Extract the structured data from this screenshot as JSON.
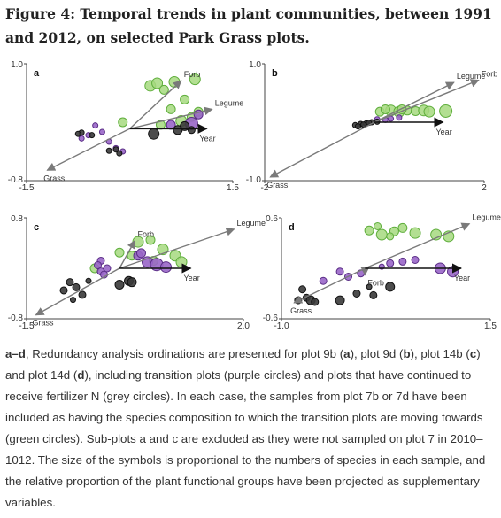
{
  "figure": {
    "title": "Figure 4: Temporal trends in plant communities, between 1991 and 2012, on selected Park Grass plots."
  },
  "caption": {
    "label": "a–d",
    "p1": ", Redundancy analysis ordinations are presented for plot 9b (",
    "a": "a",
    "p2": "), plot 9d (",
    "b": "b",
    "p3": "), plot 14b (",
    "c": "c",
    "p4": ") and plot 14d (",
    "d": "d",
    "p5": "), including transition plots (purple circles) and plots that have continued to receive fertilizer N (grey circles). In each case, the samples from plot 7b or 7d have been included as having the species composition to which the transition plots are moving towards (green circles). Sub-plots a and c are excluded as they were not sampled on plot 7 in 2010–1012. The size of the symbols is proportional to the numbers of species in each sample, and the relative proportion of the plant functional groups have been projected as supplementary variables."
  },
  "colors": {
    "green_fill": "#a6d97f",
    "green_stroke": "#5fae3c",
    "purple_fill": "#9966c8",
    "purple_stroke": "#5a2d86",
    "grey_fill": "#3a3a3a",
    "grey_stroke": "#111111",
    "arrow_grey": "#7a7a7a",
    "arrow_black": "#111111"
  },
  "chart_data": [
    {
      "panel": "a",
      "type": "scatter",
      "xlim": [
        -1.5,
        1.5
      ],
      "ylim": [
        -0.8,
        1.0
      ],
      "x_ticks": [
        "-1.5",
        "1.5"
      ],
      "y_ticks": [
        "1.0",
        "-0.8"
      ],
      "vectors": [
        {
          "label": "Forb",
          "x": 0.75,
          "y": 0.74,
          "color": "grey"
        },
        {
          "label": "Legume",
          "x": 1.2,
          "y": 0.3,
          "color": "grey"
        },
        {
          "label": "Grass",
          "x": -1.2,
          "y": -0.64,
          "color": "grey"
        },
        {
          "label": "Year",
          "x": 1.12,
          "y": 0.0,
          "color": "black"
        }
      ],
      "series": [
        {
          "name": "green",
          "points": [
            [
              0.3,
              0.66,
              6
            ],
            [
              0.4,
              0.7,
              6
            ],
            [
              0.5,
              0.6,
              5
            ],
            [
              0.65,
              0.72,
              6
            ],
            [
              0.95,
              0.76,
              6
            ],
            [
              0.8,
              0.45,
              5
            ],
            [
              -0.1,
              0.1,
              5
            ],
            [
              0.6,
              0.3,
              5
            ],
            [
              0.75,
              0.12,
              6
            ],
            [
              0.9,
              0.18,
              5
            ],
            [
              1.0,
              0.26,
              5
            ],
            [
              0.45,
              0.06,
              5
            ]
          ]
        },
        {
          "name": "purple",
          "points": [
            [
              -0.5,
              0.05,
              3
            ],
            [
              -0.4,
              -0.05,
              3
            ],
            [
              -0.6,
              -0.1,
              3
            ],
            [
              -0.3,
              -0.2,
              3
            ],
            [
              -0.2,
              -0.3,
              3
            ],
            [
              -0.1,
              -0.35,
              3
            ],
            [
              0.6,
              0.06,
              5
            ],
            [
              0.9,
              0.08,
              7
            ],
            [
              1.0,
              0.22,
              5
            ],
            [
              -0.7,
              -0.15,
              3
            ]
          ]
        },
        {
          "name": "grey",
          "points": [
            [
              -0.7,
              -0.06,
              3
            ],
            [
              -0.75,
              -0.08,
              3
            ],
            [
              -0.55,
              -0.1,
              3
            ],
            [
              -0.3,
              -0.34,
              3
            ],
            [
              -0.15,
              -0.38,
              3
            ],
            [
              -0.2,
              -0.32,
              3
            ],
            [
              0.35,
              -0.08,
              6
            ],
            [
              0.8,
              0.04,
              5
            ],
            [
              0.7,
              -0.02,
              5
            ],
            [
              0.9,
              -0.02,
              4
            ]
          ]
        }
      ]
    },
    {
      "panel": "b",
      "type": "scatter",
      "xlim": [
        -2,
        2
      ],
      "ylim": [
        -1.0,
        1.0
      ],
      "x_ticks": [
        "-2",
        "2"
      ],
      "y_ticks": [
        "1.0",
        "-1.0"
      ],
      "vectors": [
        {
          "label": "Legume",
          "x": 1.45,
          "y": 0.68,
          "color": "grey"
        },
        {
          "label": "Forb",
          "x": 1.9,
          "y": 0.72,
          "color": "grey"
        },
        {
          "label": "Grass",
          "x": -1.9,
          "y": -0.94,
          "color": "grey"
        },
        {
          "label": "Year",
          "x": 1.25,
          "y": 0.0,
          "color": "black"
        }
      ],
      "series": [
        {
          "name": "green",
          "points": [
            [
              0.1,
              0.18,
              5
            ],
            [
              0.3,
              0.2,
              6
            ],
            [
              0.45,
              0.18,
              6
            ],
            [
              0.6,
              0.2,
              5
            ],
            [
              0.75,
              0.19,
              5
            ],
            [
              0.9,
              0.2,
              6
            ],
            [
              1.0,
              0.18,
              6
            ],
            [
              1.3,
              0.19,
              7
            ],
            [
              0.2,
              0.22,
              5
            ],
            [
              0.5,
              0.22,
              5
            ]
          ]
        },
        {
          "name": "purple",
          "points": [
            [
              0.05,
              0.05,
              3
            ],
            [
              0.2,
              0.04,
              3
            ],
            [
              0.3,
              0.06,
              3
            ],
            [
              0.45,
              0.08,
              3
            ]
          ]
        },
        {
          "name": "grey",
          "points": [
            [
              -0.35,
              -0.05,
              3
            ],
            [
              -0.25,
              -0.03,
              3
            ],
            [
              -0.15,
              -0.02,
              3
            ],
            [
              -0.05,
              0.0,
              3
            ],
            [
              0.05,
              0.01,
              3
            ],
            [
              -0.3,
              -0.07,
              3
            ],
            [
              -0.2,
              -0.04,
              3
            ],
            [
              -0.1,
              -0.01,
              3
            ]
          ]
        }
      ]
    },
    {
      "panel": "c",
      "type": "scatter",
      "xlim": [
        -1.5,
        2.0
      ],
      "ylim": [
        -0.8,
        0.8
      ],
      "x_ticks": [
        "-1.5",
        "2.0"
      ],
      "y_ticks": [
        "0.8",
        "-0.8"
      ],
      "vectors": [
        {
          "label": "Forb",
          "x": 0.25,
          "y": 0.44,
          "color": "grey"
        },
        {
          "label": "Legume",
          "x": 1.85,
          "y": 0.62,
          "color": "grey"
        },
        {
          "label": "Grass",
          "x": -1.35,
          "y": -0.74,
          "color": "grey"
        },
        {
          "label": "Year",
          "x": 1.15,
          "y": 0.0,
          "color": "black"
        }
      ],
      "series": [
        {
          "name": "green",
          "points": [
            [
              0.3,
              0.42,
              6
            ],
            [
              0.5,
              0.45,
              5
            ],
            [
              0.7,
              0.3,
              6
            ],
            [
              0.9,
              0.2,
              6
            ],
            [
              1.0,
              0.1,
              6
            ],
            [
              0.2,
              0.2,
              5
            ],
            [
              -0.4,
              0.0,
              5
            ],
            [
              0.0,
              0.25,
              5
            ],
            [
              0.55,
              0.12,
              5
            ]
          ]
        },
        {
          "name": "purple",
          "points": [
            [
              -0.3,
              0.12,
              4
            ],
            [
              -0.35,
              0.05,
              4
            ],
            [
              -0.3,
              -0.05,
              4
            ],
            [
              -0.25,
              -0.1,
              4
            ],
            [
              -0.2,
              0.0,
              4
            ],
            [
              0.3,
              0.2,
              5
            ],
            [
              0.45,
              0.1,
              6
            ],
            [
              0.6,
              0.06,
              7
            ],
            [
              0.75,
              0.02,
              6
            ],
            [
              0.35,
              0.24,
              5
            ]
          ]
        },
        {
          "name": "grey",
          "points": [
            [
              -0.8,
              -0.22,
              4
            ],
            [
              -0.7,
              -0.3,
              4
            ],
            [
              -0.9,
              -0.35,
              4
            ],
            [
              -0.6,
              -0.42,
              4
            ],
            [
              -0.75,
              -0.5,
              3
            ],
            [
              0.0,
              -0.26,
              5
            ],
            [
              0.15,
              -0.2,
              5
            ],
            [
              0.2,
              -0.22,
              5
            ],
            [
              -0.5,
              -0.2,
              3
            ]
          ]
        }
      ]
    },
    {
      "panel": "d",
      "type": "scatter",
      "xlim": [
        -1.0,
        1.5
      ],
      "ylim": [
        -0.6,
        0.6
      ],
      "x_ticks": [
        "-1.0",
        "1.5"
      ],
      "y_ticks": [
        "0.6",
        "-0.6"
      ],
      "vectors": [
        {
          "label": "Legume",
          "x": 1.25,
          "y": 0.53,
          "color": "grey"
        },
        {
          "label": "Forb",
          "x": 0.0,
          "y": -0.08,
          "color": "grey"
        },
        {
          "label": "Grass",
          "x": -0.85,
          "y": -0.41,
          "color": "grey"
        },
        {
          "label": "Year",
          "x": 1.15,
          "y": 0.0,
          "color": "black"
        }
      ],
      "series": [
        {
          "name": "green",
          "points": [
            [
              0.05,
              0.45,
              5
            ],
            [
              0.2,
              0.4,
              6
            ],
            [
              0.35,
              0.44,
              5
            ],
            [
              0.45,
              0.48,
              5
            ],
            [
              0.6,
              0.42,
              6
            ],
            [
              0.85,
              0.4,
              6
            ],
            [
              1.0,
              0.38,
              6
            ],
            [
              0.15,
              0.5,
              4
            ],
            [
              0.3,
              0.38,
              4
            ]
          ]
        },
        {
          "name": "purple",
          "points": [
            [
              -0.3,
              -0.04,
              4
            ],
            [
              -0.2,
              -0.1,
              4
            ],
            [
              -0.05,
              -0.06,
              4
            ],
            [
              0.3,
              0.06,
              4
            ],
            [
              0.45,
              0.08,
              4
            ],
            [
              0.6,
              0.1,
              4
            ],
            [
              0.9,
              0.0,
              6
            ],
            [
              1.05,
              -0.04,
              6
            ],
            [
              -0.5,
              -0.15,
              4
            ],
            [
              0.2,
              0.02,
              3
            ]
          ]
        },
        {
          "name": "grey",
          "points": [
            [
              -0.75,
              -0.25,
              4
            ],
            [
              -0.7,
              -0.35,
              4
            ],
            [
              -0.65,
              -0.38,
              5
            ],
            [
              -0.6,
              -0.4,
              4
            ],
            [
              -0.3,
              -0.38,
              5
            ],
            [
              -0.1,
              -0.3,
              4
            ],
            [
              0.1,
              -0.32,
              4
            ],
            [
              0.3,
              -0.22,
              5
            ],
            [
              -0.8,
              -0.38,
              4
            ],
            [
              0.05,
              -0.22,
              3
            ]
          ]
        }
      ]
    }
  ]
}
